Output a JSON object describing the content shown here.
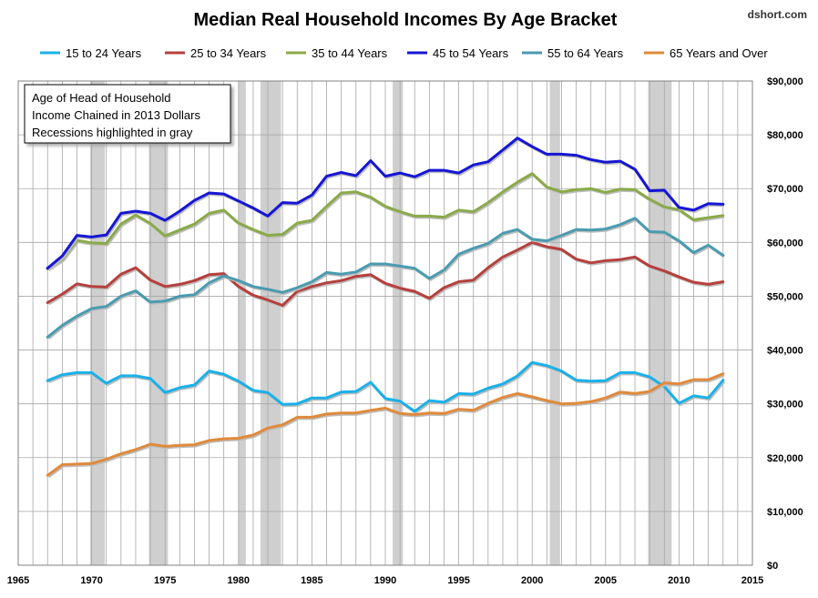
{
  "credit": "dshort.com",
  "chart_data": {
    "type": "line",
    "title": "Median Real Household Incomes By Age Bracket",
    "annotation_lines": [
      "Age of Head of Household",
      "Income Chained in 2013 Dollars",
      "Recessions highlighted in gray"
    ],
    "xlim": [
      1965,
      2015
    ],
    "x_ticks": [
      "1965",
      "1970",
      "1975",
      "1980",
      "1985",
      "1990",
      "1995",
      "2000",
      "2005",
      "2010",
      "2015"
    ],
    "ylim": [
      0,
      90000
    ],
    "y_ticks": [
      "$0",
      "$10,000",
      "$20,000",
      "$30,000",
      "$40,000",
      "$50,000",
      "$60,000",
      "$70,000",
      "$80,000",
      "$90,000"
    ],
    "y_axis_side": "right",
    "grid": "horizontal and vertical (yearly)",
    "legend_position": "top",
    "recessions": [
      [
        1969.9,
        1970.9
      ],
      [
        1973.9,
        1975.2
      ],
      [
        1980.0,
        1980.5
      ],
      [
        1981.5,
        1982.9
      ],
      [
        1990.5,
        1991.2
      ],
      [
        2001.2,
        2001.9
      ],
      [
        2007.9,
        2009.5
      ]
    ],
    "x": [
      1967,
      1968,
      1969,
      1970,
      1971,
      1972,
      1973,
      1974,
      1975,
      1976,
      1977,
      1978,
      1979,
      1980,
      1981,
      1982,
      1983,
      1984,
      1985,
      1986,
      1987,
      1988,
      1989,
      1990,
      1991,
      1992,
      1993,
      1994,
      1995,
      1996,
      1997,
      1998,
      1999,
      2000,
      2001,
      2002,
      2003,
      2004,
      2005,
      2006,
      2007,
      2008,
      2009,
      2010,
      2011,
      2012,
      2013
    ],
    "series": [
      {
        "name": "15 to 24 Years",
        "color": "#1ab0e8",
        "values": [
          34300,
          35400,
          35800,
          35800,
          33800,
          35200,
          35200,
          34700,
          32100,
          33000,
          33500,
          36100,
          35500,
          34200,
          32500,
          32100,
          29900,
          30000,
          31100,
          31100,
          32200,
          32300,
          34000,
          31000,
          30500,
          28600,
          30600,
          30300,
          31900,
          31800,
          32900,
          33700,
          35200,
          37700,
          37100,
          36100,
          34400,
          34200,
          34300,
          35800,
          35800,
          35000,
          33200,
          30100,
          31500,
          31100,
          34400
        ]
      },
      {
        "name": "25 to 34 Years",
        "color": "#b5403d",
        "values": [
          48800,
          50400,
          52300,
          51800,
          51700,
          54100,
          55300,
          53000,
          51800,
          52200,
          52900,
          54000,
          54200,
          51800,
          50200,
          49300,
          48300,
          50900,
          51800,
          52500,
          52900,
          53700,
          54000,
          52400,
          51500,
          50900,
          49600,
          51600,
          52700,
          53000,
          55300,
          57300,
          58600,
          60000,
          59200,
          58700,
          56900,
          56200,
          56600,
          56800,
          57300,
          55600,
          54700,
          53600,
          52600,
          52200,
          52700
        ]
      },
      {
        "name": "35 to 44 Years",
        "color": "#8aaa48",
        "values": [
          55100,
          56900,
          60400,
          59900,
          59800,
          63400,
          65100,
          63500,
          61200,
          62300,
          63400,
          65400,
          66000,
          63600,
          62400,
          61300,
          61500,
          63600,
          64100,
          66700,
          69200,
          69400,
          68400,
          66700,
          65700,
          64900,
          64900,
          64700,
          66000,
          65700,
          67400,
          69400,
          71200,
          72800,
          70300,
          69400,
          69800,
          70000,
          69300,
          69900,
          69800,
          68000,
          66600,
          66100,
          64200,
          64600,
          65000
        ]
      },
      {
        "name": "45 to 54 Years",
        "color": "#1616d4",
        "values": [
          55200,
          57500,
          61300,
          61000,
          61400,
          65400,
          65800,
          65400,
          64100,
          65800,
          67800,
          69200,
          69000,
          67700,
          66400,
          64900,
          67400,
          67300,
          68800,
          72300,
          73000,
          72400,
          75200,
          72300,
          72900,
          72200,
          73400,
          73400,
          72900,
          74400,
          75000,
          77200,
          79400,
          77800,
          76400,
          76400,
          76200,
          75400,
          74900,
          75100,
          73600,
          69600,
          69700,
          66500,
          66000,
          67200,
          67100
        ]
      },
      {
        "name": "55 to 64 Years",
        "color": "#4a9bb0",
        "values": [
          42400,
          44600,
          46300,
          47700,
          48100,
          50000,
          51000,
          48900,
          49100,
          50000,
          50300,
          52500,
          53800,
          52900,
          51800,
          51300,
          50700,
          51600,
          52700,
          54400,
          54100,
          54500,
          56000,
          56000,
          55600,
          55200,
          53300,
          54900,
          57800,
          58900,
          59800,
          61700,
          62400,
          60600,
          60300,
          61300,
          62400,
          62300,
          62500,
          63300,
          64500,
          62000,
          61900,
          60300,
          58100,
          59500,
          57600
        ]
      },
      {
        "name": "65 Years and Over",
        "color": "#e08a3c",
        "values": [
          16700,
          18700,
          18800,
          18900,
          19700,
          20700,
          21500,
          22500,
          22100,
          22300,
          22400,
          23200,
          23500,
          23600,
          24200,
          25500,
          26100,
          27500,
          27500,
          28100,
          28300,
          28300,
          28800,
          29200,
          28200,
          28000,
          28300,
          28200,
          29000,
          28800,
          30100,
          31200,
          31900,
          31300,
          30600,
          30000,
          30100,
          30400,
          31100,
          32200,
          31900,
          32300,
          33900,
          33700,
          34500,
          34500,
          35600
        ]
      }
    ]
  }
}
